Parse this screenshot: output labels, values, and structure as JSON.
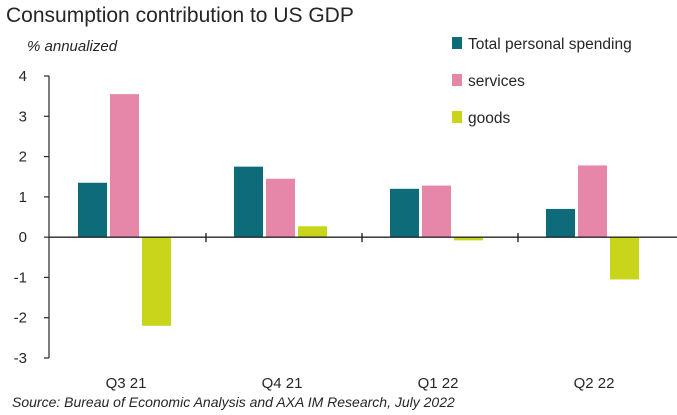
{
  "chart_data": {
    "type": "bar",
    "title": "Consumption contribution to US GDP",
    "ylabel": "% annualized",
    "xlabel": "",
    "categories": [
      "Q3 21",
      "Q4 21",
      "Q1 22",
      "Q2 22"
    ],
    "series": [
      {
        "name": "Total personal spending",
        "values": [
          1.35,
          1.75,
          1.2,
          0.7
        ],
        "color": "#0e6b7a"
      },
      {
        "name": "services",
        "values": [
          3.55,
          1.45,
          1.28,
          1.78
        ],
        "color": "#e687aa"
      },
      {
        "name": "goods",
        "values": [
          -2.2,
          0.27,
          -0.08,
          -1.05
        ],
        "color": "#c8d51a"
      }
    ],
    "ylim": [
      -3,
      4
    ],
    "yticks": [
      4,
      3,
      2,
      1,
      0,
      -1,
      -2,
      -3
    ],
    "grid": false,
    "legend_position": "top-right",
    "source": "Source: Bureau of Economic Analysis and AXA IM Research, July 2022"
  }
}
